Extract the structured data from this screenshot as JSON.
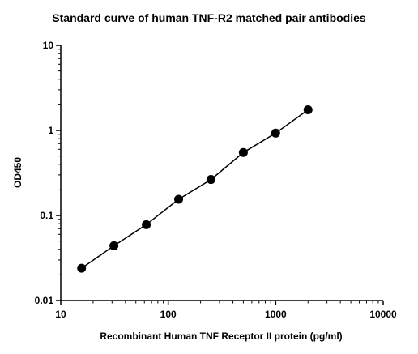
{
  "chart_data": {
    "type": "scatter",
    "title": "Standard curve of human TNF-R2 matched pair antibodies",
    "xlabel": "Recombinant Human TNF Receptor II protein (pg/ml)",
    "ylabel": "OD450",
    "x_scale": "log",
    "y_scale": "log",
    "xlim": [
      10,
      10000
    ],
    "ylim": [
      0.01,
      10
    ],
    "x_ticks": [
      "10",
      "100",
      "1000",
      "10000"
    ],
    "y_ticks": [
      "0.01",
      "0.1",
      "1",
      "10"
    ],
    "grid": false,
    "legend": "none",
    "series": [
      {
        "x": [
          15.625,
          31.25,
          62.5,
          125,
          250,
          500,
          1000,
          2000
        ],
        "y": [
          0.024,
          0.044,
          0.078,
          0.155,
          0.265,
          0.55,
          0.93,
          1.75
        ],
        "marker_color": "#000000",
        "line_color": "#000000",
        "fit_line": true
      }
    ]
  }
}
